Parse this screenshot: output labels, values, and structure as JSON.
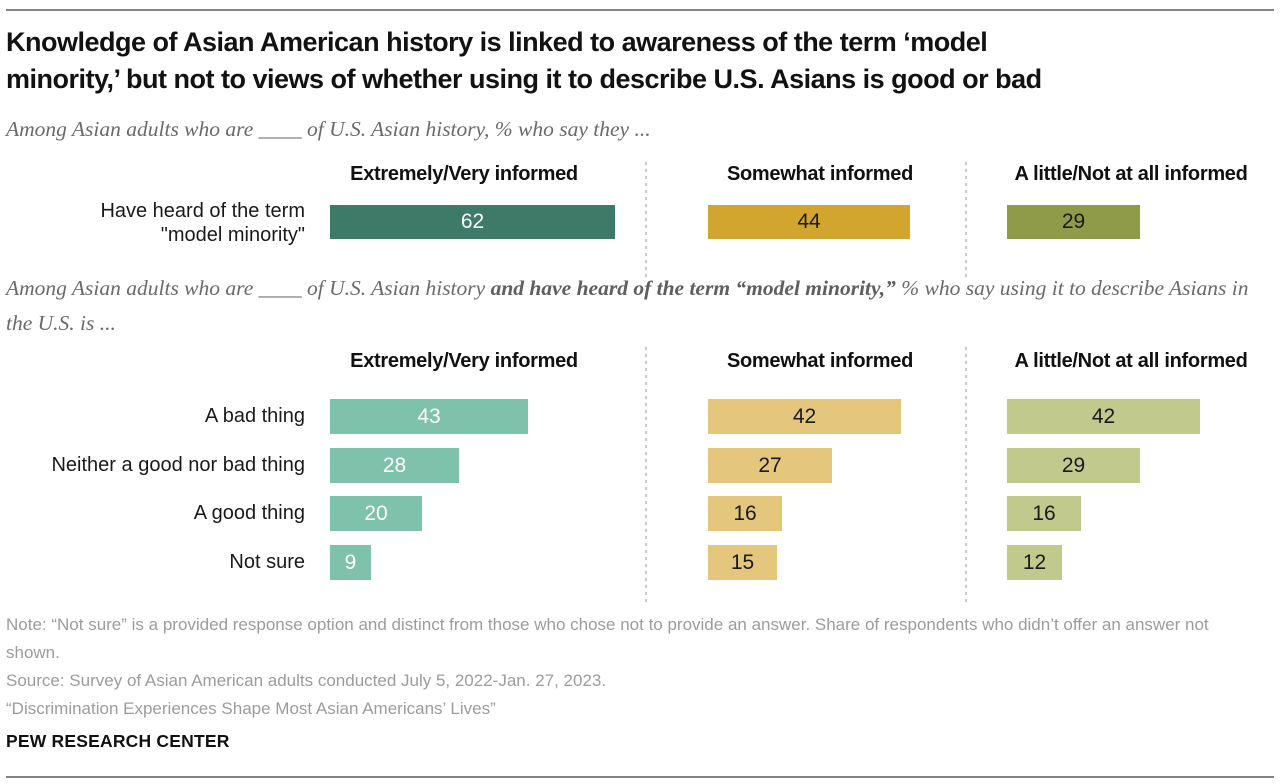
{
  "header": {
    "title_line1": "Knowledge of Asian American history is linked to awareness of the term ‘model",
    "title_line2": "minority,’ but not to views of whether using it to describe U.S. Asians is good or bad"
  },
  "subtitle1": "Among Asian adults who are ____ of U.S. Asian history, % who say they ...",
  "subtitle2": {
    "pre": "Among Asian adults who are ____ of U.S. Asian history ",
    "bold": "and have heard of the term “model minority,”",
    "post": " % who say using it to describe Asians in the U.S. is ..."
  },
  "chart_data": [
    {
      "type": "bar",
      "orientation": "horizontal",
      "columns": [
        "Extremely/Very informed",
        "Somewhat informed",
        "A little/Not at all informed"
      ],
      "categories": [
        "Have heard of the term \"model minority\""
      ],
      "series": [
        {
          "name": "Extremely/Very informed",
          "values": [
            62
          ]
        },
        {
          "name": "Somewhat informed",
          "values": [
            44
          ]
        },
        {
          "name": "A little/Not at all informed",
          "values": [
            29
          ]
        }
      ],
      "xlim": [
        0,
        100
      ],
      "data_labels": "inside-center"
    },
    {
      "type": "bar",
      "orientation": "horizontal",
      "columns": [
        "Extremely/Very informed",
        "Somewhat informed",
        "A little/Not at all informed"
      ],
      "categories": [
        "A bad thing",
        "Neither a good nor bad thing",
        "A good thing",
        "Not sure"
      ],
      "series": [
        {
          "name": "Extremely/Very informed",
          "values": [
            43,
            28,
            20,
            9
          ]
        },
        {
          "name": "Somewhat informed",
          "values": [
            42,
            27,
            16,
            15
          ]
        },
        {
          "name": "A little/Not at all informed",
          "values": [
            42,
            29,
            16,
            12
          ]
        }
      ],
      "xlim": [
        0,
        100
      ],
      "data_labels": "inside-center"
    }
  ],
  "palette": {
    "bar_colors_chart1": [
      "#3D7A68",
      "#D2A62E",
      "#8F9B49"
    ],
    "bar_colors_chart2": [
      "#7FC2AB",
      "#E4C67D",
      "#C2C98D"
    ],
    "bar_value_text_colors": [
      "#FFFFFF",
      "#1A1A1A",
      "#1A1A1A"
    ],
    "divider_color": "#C9C9C9",
    "rule_color": "#858585",
    "subtitle_text": "#6A6A6A",
    "note_text": "#9C9C9C",
    "title_text": "#121212"
  },
  "footer": {
    "note": "Note: “Not sure” is a provided response option and distinct from those who chose not to provide an answer. Share of respondents who didn’t offer an answer not shown.",
    "source": "Source: Survey of Asian American adults conducted July 5, 2022-Jan. 27, 2023.",
    "report": "“Discrimination Experiences Shape Most Asian Americans’ Lives”",
    "brand": "PEW RESEARCH CENTER"
  }
}
